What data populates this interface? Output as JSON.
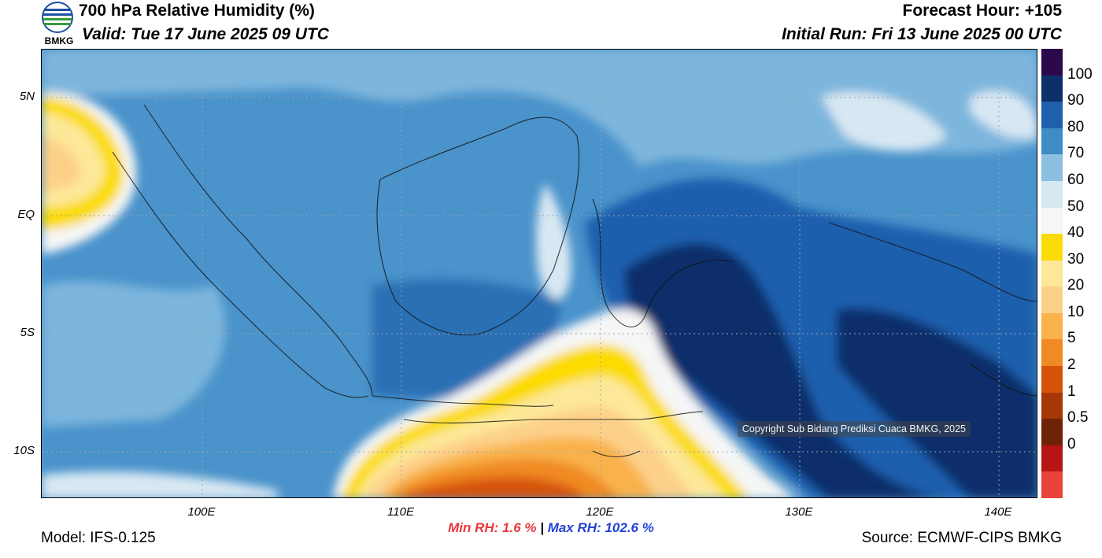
{
  "header": {
    "title": "700 hPa Relative Humidity (%)",
    "valid": "Valid: Tue 17 June 2025 09 UTC",
    "forecast_hour": "Forecast Hour: +105",
    "initial_run": "Initial Run: Fri 13 June 2025 00 UTC",
    "logo_text": "BMKG"
  },
  "map": {
    "lat_labels": [
      "5N",
      "EQ",
      "5S",
      "10S"
    ],
    "lon_labels": [
      "100E",
      "110E",
      "120E",
      "130E",
      "140E"
    ],
    "copyright": "Copyright Sub Bidang Prediksi Cuaca BMKG, 2025"
  },
  "colorbar": {
    "labels": [
      "100",
      "90",
      "80",
      "70",
      "60",
      "50",
      "40",
      "30",
      "20",
      "10",
      "5",
      "2",
      "1",
      "0.5",
      "0"
    ],
    "colors": [
      "#2a0a4a",
      "#0d2f6a",
      "#1f5fad",
      "#3f8bc6",
      "#8cc0e0",
      "#d8e8f3",
      "#f6f6f6",
      "#fbdb05",
      "#fde89a",
      "#fdd08a",
      "#f9b24c",
      "#f08a22",
      "#d65309",
      "#a63806",
      "#6e2208",
      "#b81414",
      "#e8443a"
    ]
  },
  "stats": {
    "min_rh": "Min RH:   1.6 %",
    "separator": " | ",
    "max_rh": "Max RH: 102.6 %"
  },
  "footer": {
    "model": "Model: IFS-0.125",
    "source": "Source: ECMWF-CIPS BMKG"
  }
}
